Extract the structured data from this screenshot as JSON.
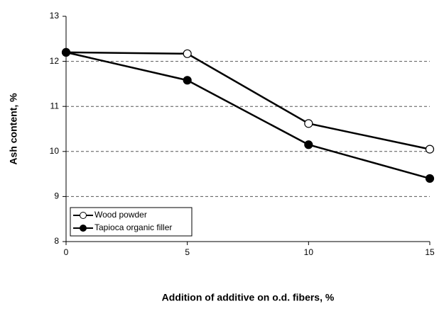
{
  "chart_data": {
    "type": "line",
    "x_label": "Addition  of additive  on o.d. fibers, %",
    "y_label": "Ash content, %",
    "x": [
      0,
      5,
      10,
      15
    ],
    "series": [
      {
        "name": "Wood powder",
        "color": "#000000",
        "marker_fill": "#ffffff",
        "values": [
          12.2,
          12.17,
          10.62,
          10.05
        ]
      },
      {
        "name": "Tapioca organic filler",
        "color": "#000000",
        "marker_fill": "#000000",
        "values": [
          12.2,
          11.58,
          10.15,
          9.4
        ]
      }
    ],
    "xlim": [
      0,
      15
    ],
    "xticks": [
      0,
      5,
      10,
      15
    ],
    "ylim": [
      8,
      13
    ],
    "yticks": [
      8,
      9,
      10,
      11,
      12,
      13
    ],
    "grid": true,
    "legend_position": "lower left"
  }
}
